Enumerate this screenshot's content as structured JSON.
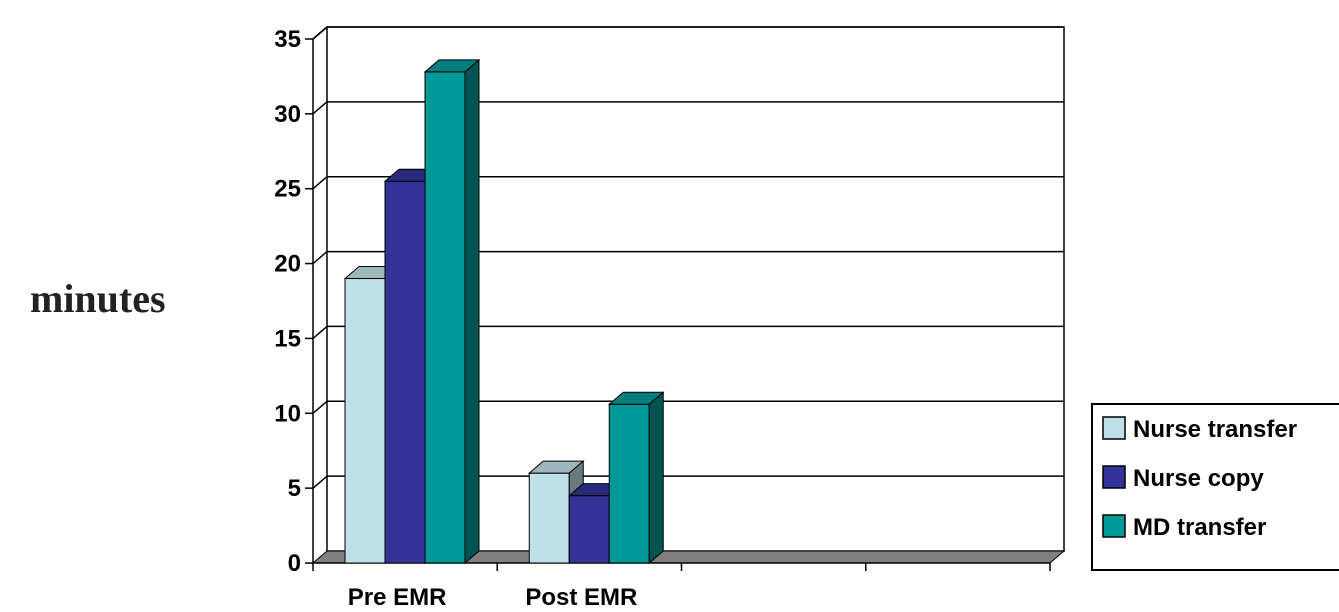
{
  "chart_data": {
    "type": "bar",
    "title": "",
    "xlabel": "",
    "ylabel": "minutes",
    "categories": [
      "Pre EMR",
      "Post EMR",
      "",
      ""
    ],
    "series": [
      {
        "name": "Nurse transfer",
        "values": [
          19,
          6,
          null,
          null
        ],
        "color": "#bfe0e6"
      },
      {
        "name": "Nurse copy",
        "values": [
          25.5,
          4.5,
          null,
          null
        ],
        "color": "#333399"
      },
      {
        "name": "MD transfer",
        "values": [
          32.8,
          10.6,
          null,
          null
        ],
        "color": "#009999"
      }
    ],
    "ylim": [
      0,
      35
    ],
    "yticks": [
      0,
      5,
      10,
      15,
      20,
      25,
      30,
      35
    ],
    "grid": true,
    "legend_position": "bottom-right",
    "style": "3d-bar"
  }
}
